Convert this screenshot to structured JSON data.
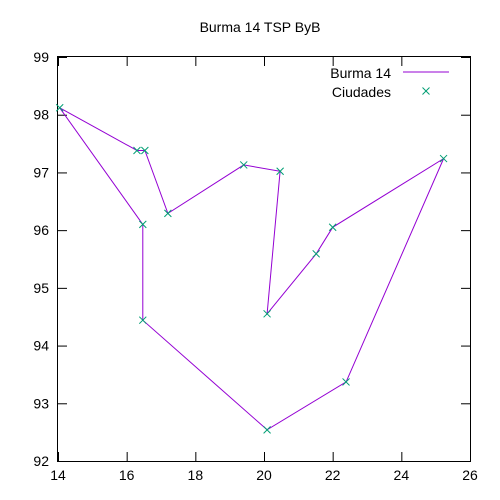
{
  "chart_data": {
    "type": "line",
    "title": "Burma 14 TSP ByB",
    "xlabel": "",
    "ylabel": "",
    "xlim": [
      14,
      26
    ],
    "ylim": [
      92,
      99
    ],
    "xticks": [
      14,
      16,
      18,
      20,
      22,
      24,
      26
    ],
    "yticks": [
      92,
      93,
      94,
      95,
      96,
      97,
      98,
      99
    ],
    "grid": false,
    "legend_position": "top-right",
    "colors": {
      "route": "#9400d3",
      "points": "#009e73",
      "axis": "#000000"
    },
    "series": [
      {
        "name": "Burma 14",
        "kind": "line",
        "x": [
          16.47,
          16.47,
          20.09,
          22.39,
          25.23,
          22.0,
          21.52,
          20.09,
          20.47,
          19.41,
          17.2,
          16.53,
          16.3,
          14.05,
          16.47
        ],
        "y": [
          96.1,
          94.44,
          92.54,
          93.37,
          97.24,
          96.05,
          95.59,
          94.55,
          97.02,
          97.13,
          96.29,
          97.38,
          97.38,
          98.12,
          96.1
        ]
      },
      {
        "name": "Ciudades",
        "kind": "points",
        "marker": "x",
        "x": [
          16.47,
          16.47,
          20.09,
          22.39,
          25.23,
          22.0,
          21.52,
          20.09,
          20.47,
          19.41,
          17.2,
          16.53,
          16.3,
          14.05
        ],
        "y": [
          96.1,
          94.44,
          92.54,
          93.37,
          97.24,
          96.05,
          95.59,
          94.55,
          97.02,
          97.13,
          96.29,
          97.38,
          97.38,
          98.12
        ]
      }
    ]
  }
}
